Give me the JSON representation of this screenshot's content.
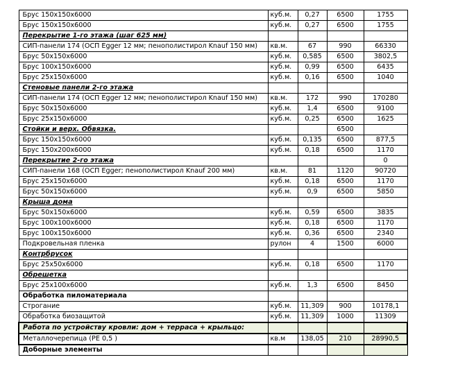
{
  "rows": [
    {
      "name": "Брус  150х150х6000",
      "unit": "куб.м.",
      "qty": "0,27",
      "price": "6500",
      "sum": "1755"
    },
    {
      "name": "Брус  150х150х6000",
      "unit": "куб.м.",
      "qty": "0,27",
      "price": "6500",
      "sum": "1755"
    },
    {
      "name": "Перекрытие 1-го этажа (шаг 625 мм)",
      "unit": "",
      "qty": "",
      "price": "",
      "sum": "",
      "type": "section"
    },
    {
      "name": "СИП-панели 174 (ОСП Egger 12 мм; пенополистирол Knauf  150 мм)",
      "unit": "кв.м.",
      "qty": "67",
      "price": "990",
      "sum": "66330"
    },
    {
      "name": "Брус  50х150х6000",
      "unit": "куб.м.",
      "qty": "0,585",
      "price": "6500",
      "sum": "3802,5"
    },
    {
      "name": "Брус  100х150х6000",
      "unit": "куб.м.",
      "qty": "0,99",
      "price": "6500",
      "sum": "6435"
    },
    {
      "name": "Брус  25х150х6000",
      "unit": "куб.м.",
      "qty": "0,16",
      "price": "6500",
      "sum": "1040"
    },
    {
      "name": "Стеновые панели 2-го этажа",
      "unit": "",
      "qty": "",
      "price": "",
      "sum": "",
      "type": "section"
    },
    {
      "name": "СИП-панели 174 (ОСП Egger 12 мм; пенополистирол Knauf 150 мм)",
      "unit": "кв.м.",
      "qty": "172",
      "price": "990",
      "sum": "170280"
    },
    {
      "name": "Брус  50х150х6000",
      "unit": "куб.м.",
      "qty": "1,4",
      "price": "6500",
      "sum": "9100"
    },
    {
      "name": "Брус  25х150х6000",
      "unit": "куб.м.",
      "qty": "0,25",
      "price": "6500",
      "sum": "1625"
    },
    {
      "name": "Стойки и верх. Обвязка.",
      "unit": "",
      "qty": "",
      "price": "6500",
      "sum": "",
      "type": "section"
    },
    {
      "name": "Брус  150х150х6000",
      "unit": "куб.м.",
      "qty": "0,135",
      "price": "6500",
      "sum": "877,5"
    },
    {
      "name": "Брус  150х200х6000",
      "unit": "куб.м.",
      "qty": "0,18",
      "price": "6500",
      "sum": "1170"
    },
    {
      "name": "Перекрытие 2-го этажа",
      "unit": "",
      "qty": "",
      "price": "",
      "sum": "0",
      "type": "section"
    },
    {
      "name": "СИП-панели 168 (ОСП Egger; пенополистирол Knauf  200 мм)",
      "unit": "кв.м.",
      "qty": "81",
      "price": "1120",
      "sum": "90720"
    },
    {
      "name": "Брус  25х150х6000",
      "unit": "куб.м.",
      "qty": "0,18",
      "price": "6500",
      "sum": "1170"
    },
    {
      "name": "Брус  50х150х6000",
      "unit": "куб.м.",
      "qty": "0,9",
      "price": "6500",
      "sum": "5850"
    },
    {
      "name": "Крыша дома",
      "unit": "",
      "qty": "",
      "price": "",
      "sum": "",
      "type": "section"
    },
    {
      "name": "Брус  50х150х6000",
      "unit": "куб.м.",
      "qty": "0,59",
      "price": "6500",
      "sum": "3835"
    },
    {
      "name": "Брус  100х100х6000",
      "unit": "куб.м.",
      "qty": "0,18",
      "price": "6500",
      "sum": "1170"
    },
    {
      "name": "Брус  100х150х6000",
      "unit": "куб.м.",
      "qty": "0,36",
      "price": "6500",
      "sum": "2340"
    },
    {
      "name": "Подкровельная пленка",
      "unit": "рулон",
      "qty": "4",
      "price": "1500",
      "sum": "6000"
    },
    {
      "name": "Контрбрусок",
      "unit": "",
      "qty": "",
      "price": "",
      "sum": "",
      "type": "section"
    },
    {
      "name": "Брус 25х50х6000",
      "unit": "куб.м.",
      "qty": "0,18",
      "price": "6500",
      "sum": "1170"
    },
    {
      "name": "Обрешетка",
      "unit": "",
      "qty": "",
      "price": "",
      "sum": "",
      "type": "section"
    },
    {
      "name": "Брус  25х100х6000",
      "unit": "куб.м.",
      "qty": "1,3",
      "price": "6500",
      "sum": "8450"
    },
    {
      "name": "Обработка пиломатериала",
      "unit": "",
      "qty": "",
      "price": "",
      "sum": "",
      "type": "header"
    },
    {
      "name": "Строгание",
      "unit": "куб.м.",
      "qty": "11,309",
      "price": "900",
      "sum": "10178,1"
    },
    {
      "name": "Обработка биозащитой",
      "unit": "куб.м.",
      "qty": "11,309",
      "price": "1000",
      "sum": "11309"
    },
    {
      "name": "Работа по устройству кровли: дом + терраса + крыльцо:",
      "unit": "",
      "qty": "",
      "price": "",
      "sum": "",
      "type": "highlight"
    },
    {
      "name": "Металлочерепица (РЕ 0,5 )",
      "unit": "кв.м",
      "qty": "138,05",
      "price": "210",
      "sum": "28990,5",
      "type": "shaded"
    },
    {
      "name": "Доборные элементы",
      "unit": "",
      "qty": "",
      "price": "",
      "sum": "",
      "type": "bold-shaded"
    }
  ]
}
